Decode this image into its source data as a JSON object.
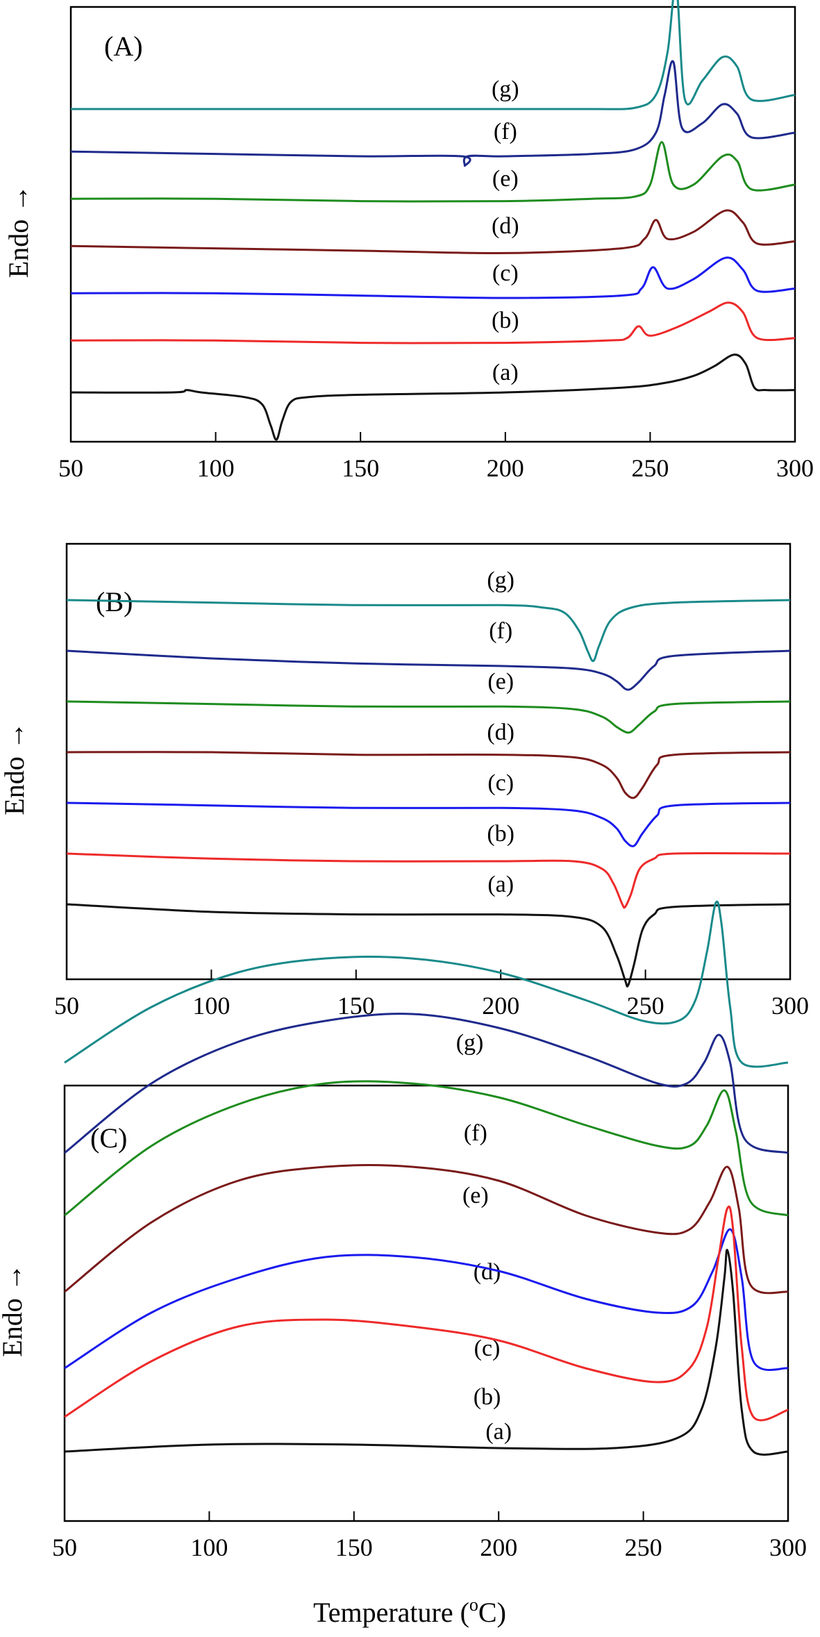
{
  "figure": {
    "xlabel": "Temperature (",
    "xlabel_sup": "o",
    "xlabel_end": "C)",
    "ylabel": "Endo",
    "ylabel_arrow": "→"
  },
  "chart_data": [
    {
      "type": "line",
      "panel_label": "(A)",
      "xlim": [
        50,
        300
      ],
      "xticks": [
        50,
        100,
        150,
        200,
        250,
        300
      ],
      "ylabel": "Endo",
      "xlabel": "",
      "series": [
        {
          "name": "(g)",
          "color": "#1a8a8a",
          "offset": 6.0,
          "x": [
            50,
            100,
            150,
            200,
            230,
            245,
            252,
            256,
            259,
            262,
            268,
            275,
            280,
            285,
            300
          ],
          "y": [
            0,
            0,
            0,
            0,
            0,
            0.03,
            0.3,
            1.2,
            2.6,
            0.2,
            0.6,
            1.1,
            0.9,
            0.2,
            0.3
          ]
        },
        {
          "name": "(f)",
          "color": "#1f2a8c",
          "offset": 5.1,
          "x": [
            50,
            100,
            150,
            185,
            186,
            187,
            200,
            230,
            245,
            252,
            255,
            258,
            261,
            268,
            275,
            280,
            285,
            300
          ],
          "y": [
            0,
            -0.05,
            -0.1,
            -0.1,
            -0.3,
            -0.1,
            -0.1,
            -0.05,
            0.05,
            0.4,
            1.2,
            1.9,
            0.5,
            0.6,
            1.0,
            0.8,
            0.3,
            0.4
          ]
        },
        {
          "name": "(e)",
          "color": "#1e8c1e",
          "offset": 4.1,
          "x": [
            50,
            100,
            150,
            200,
            230,
            245,
            250,
            254,
            258,
            265,
            275,
            280,
            285,
            300
          ],
          "y": [
            0,
            0,
            -0.05,
            -0.05,
            0,
            0.05,
            0.3,
            1.2,
            0.3,
            0.3,
            0.9,
            0.8,
            0.2,
            0.3
          ]
        },
        {
          "name": "(d)",
          "color": "#7a1a1a",
          "offset": 3.1,
          "x": [
            50,
            100,
            150,
            200,
            240,
            248,
            252,
            256,
            265,
            276,
            282,
            287,
            300
          ],
          "y": [
            0,
            -0.05,
            -0.1,
            -0.15,
            -0.05,
            0.15,
            0.55,
            0.15,
            0.3,
            0.75,
            0.5,
            0.05,
            0.1
          ]
        },
        {
          "name": "(c)",
          "color": "#1a1aee",
          "offset": 2.1,
          "x": [
            50,
            100,
            150,
            200,
            240,
            247,
            251,
            256,
            265,
            276,
            282,
            287,
            300
          ],
          "y": [
            0,
            0,
            -0.05,
            -0.1,
            -0.05,
            0.1,
            0.55,
            0.1,
            0.3,
            0.75,
            0.5,
            0.05,
            0.1
          ]
        },
        {
          "name": "(b)",
          "color": "#ee2a2a",
          "offset": 1.1,
          "x": [
            50,
            100,
            150,
            200,
            235,
            242,
            246,
            250,
            260,
            270,
            277,
            282,
            287,
            300
          ],
          "y": [
            0,
            0,
            -0.05,
            -0.05,
            0,
            0.05,
            0.3,
            0.1,
            0.3,
            0.6,
            0.8,
            0.6,
            0.05,
            0.05
          ]
        },
        {
          "name": "(a)",
          "color": "#111111",
          "offset": 0.0,
          "x": [
            50,
            85,
            90,
            95,
            110,
            116,
            119,
            121,
            123,
            126,
            132,
            150,
            200,
            240,
            255,
            265,
            272,
            279,
            283,
            286,
            290,
            300
          ],
          "y": [
            0,
            0,
            0.05,
            0,
            -0.1,
            -0.25,
            -0.7,
            -1.0,
            -0.6,
            -0.2,
            -0.1,
            -0.05,
            0,
            0.1,
            0.2,
            0.35,
            0.55,
            0.8,
            0.6,
            0.1,
            0.05,
            0.05
          ]
        }
      ]
    },
    {
      "type": "line",
      "panel_label": "(B)",
      "xlim": [
        50,
        300
      ],
      "xticks": [
        50,
        100,
        150,
        200,
        250,
        300
      ],
      "ylabel": "Endo",
      "xlabel": "",
      "series": [
        {
          "name": "(g)",
          "color": "#1a8a8a",
          "offset": 6.0,
          "x": [
            50,
            100,
            150,
            200,
            215,
            222,
            227,
            230,
            232,
            234,
            238,
            245,
            260,
            300
          ],
          "y": [
            0,
            -0.05,
            -0.1,
            -0.1,
            -0.15,
            -0.25,
            -0.6,
            -1.0,
            -1.2,
            -0.9,
            -0.4,
            -0.15,
            -0.05,
            0
          ]
        },
        {
          "name": "(f)",
          "color": "#1f2a8c",
          "offset": 5.0,
          "x": [
            50,
            100,
            150,
            200,
            225,
            235,
            240,
            243,
            245,
            248,
            253,
            260,
            300
          ],
          "y": [
            0,
            -0.15,
            -0.25,
            -0.3,
            -0.35,
            -0.45,
            -0.6,
            -0.75,
            -0.75,
            -0.6,
            -0.3,
            -0.1,
            0
          ]
        },
        {
          "name": "(e)",
          "color": "#1e8c1e",
          "offset": 4.0,
          "x": [
            50,
            100,
            150,
            200,
            225,
            235,
            240,
            243,
            245,
            248,
            253,
            260,
            300
          ],
          "y": [
            0,
            -0.05,
            -0.1,
            -0.1,
            -0.15,
            -0.3,
            -0.5,
            -0.6,
            -0.6,
            -0.45,
            -0.2,
            -0.05,
            0
          ]
        },
        {
          "name": "(d)",
          "color": "#7a1a1a",
          "offset": 3.0,
          "x": [
            50,
            100,
            150,
            200,
            225,
            235,
            240,
            243,
            246,
            249,
            254,
            260,
            300
          ],
          "y": [
            0,
            0,
            -0.05,
            -0.05,
            -0.1,
            -0.25,
            -0.5,
            -0.8,
            -0.9,
            -0.7,
            -0.25,
            -0.05,
            0
          ]
        },
        {
          "name": "(c)",
          "color": "#1a1aee",
          "offset": 2.0,
          "x": [
            50,
            100,
            150,
            200,
            225,
            235,
            240,
            243,
            246,
            249,
            254,
            260,
            300
          ],
          "y": [
            0,
            -0.05,
            -0.1,
            -0.1,
            -0.15,
            -0.3,
            -0.5,
            -0.75,
            -0.85,
            -0.6,
            -0.25,
            -0.05,
            0
          ]
        },
        {
          "name": "(b)",
          "color": "#ee2a2a",
          "offset": 1.0,
          "x": [
            50,
            100,
            150,
            200,
            225,
            235,
            239,
            242,
            243,
            245,
            248,
            253,
            260,
            300
          ],
          "y": [
            0,
            -0.1,
            -0.15,
            -0.15,
            -0.15,
            -0.3,
            -0.6,
            -1.0,
            -1.05,
            -0.8,
            -0.3,
            -0.1,
            0,
            0
          ]
        },
        {
          "name": "(a)",
          "color": "#111111",
          "offset": 0.0,
          "x": [
            50,
            100,
            150,
            200,
            225,
            235,
            240,
            243,
            244,
            246,
            249,
            253,
            260,
            300
          ],
          "y": [
            0,
            -0.15,
            -0.2,
            -0.2,
            -0.25,
            -0.45,
            -1.0,
            -1.5,
            -1.6,
            -1.2,
            -0.5,
            -0.2,
            -0.05,
            0
          ]
        }
      ]
    },
    {
      "type": "line",
      "panel_label": "(C)",
      "xlim": [
        50,
        300
      ],
      "xticks": [
        50,
        100,
        150,
        200,
        250,
        300
      ],
      "ylabel": "Endo",
      "xlabel": "Temperature (°C)",
      "series": [
        {
          "name": "(g)",
          "color": "#1a8a8a",
          "offset": 5.6,
          "x": [
            50,
            80,
            110,
            140,
            170,
            200,
            230,
            250,
            262,
            268,
            272,
            275,
            277,
            280,
            284,
            300
          ],
          "y": [
            0,
            0.8,
            1.3,
            1.5,
            1.5,
            1.3,
            0.9,
            0.6,
            0.6,
            0.9,
            1.6,
            2.3,
            2.0,
            0.8,
            0,
            0
          ]
        },
        {
          "name": "(f)",
          "color": "#1f2a8c",
          "offset": 4.3,
          "x": [
            50,
            80,
            110,
            140,
            170,
            200,
            230,
            255,
            265,
            271,
            276,
            280,
            285,
            300
          ],
          "y": [
            0,
            1.0,
            1.6,
            1.9,
            2.0,
            1.8,
            1.4,
            1.0,
            1.0,
            1.3,
            1.7,
            1.3,
            0.2,
            0
          ]
        },
        {
          "name": "(e)",
          "color": "#1e8c1e",
          "offset": 3.4,
          "x": [
            50,
            80,
            110,
            140,
            170,
            200,
            230,
            255,
            266,
            272,
            278,
            282,
            287,
            300
          ],
          "y": [
            0,
            1.0,
            1.6,
            1.9,
            1.9,
            1.7,
            1.3,
            1.0,
            1.0,
            1.3,
            1.8,
            1.2,
            0.2,
            0
          ]
        },
        {
          "name": "(d)",
          "color": "#7a1a1a",
          "offset": 2.3,
          "x": [
            50,
            80,
            110,
            140,
            170,
            200,
            230,
            255,
            266,
            273,
            279,
            283,
            287,
            300
          ],
          "y": [
            0,
            1.0,
            1.6,
            1.8,
            1.8,
            1.6,
            1.1,
            0.85,
            0.9,
            1.3,
            1.8,
            1.2,
            0.1,
            0
          ]
        },
        {
          "name": "(c)",
          "color": "#1a1aee",
          "offset": 1.2,
          "x": [
            50,
            80,
            110,
            140,
            170,
            200,
            230,
            255,
            267,
            274,
            280,
            284,
            288,
            300
          ],
          "y": [
            0,
            0.8,
            1.3,
            1.6,
            1.6,
            1.4,
            1.0,
            0.8,
            0.9,
            1.4,
            2.0,
            1.3,
            0.1,
            0
          ]
        },
        {
          "name": "(b)",
          "color": "#ee2a2a",
          "offset": 0.5,
          "x": [
            50,
            80,
            110,
            140,
            170,
            200,
            230,
            255,
            266,
            272,
            276,
            279,
            281,
            284,
            288,
            300
          ],
          "y": [
            0,
            0.8,
            1.3,
            1.4,
            1.3,
            1.1,
            0.7,
            0.5,
            0.7,
            1.3,
            2.3,
            3.0,
            2.7,
            1.0,
            0,
            0.1
          ]
        },
        {
          "name": "(a)",
          "color": "#111111",
          "offset": 0.0,
          "x": [
            50,
            100,
            150,
            200,
            240,
            262,
            270,
            275,
            278,
            279,
            281,
            284,
            288,
            300
          ],
          "y": [
            0,
            0.1,
            0.1,
            0.05,
            0.05,
            0.2,
            0.6,
            1.5,
            2.5,
            2.9,
            2.3,
            0.6,
            0,
            0
          ]
        }
      ]
    }
  ]
}
